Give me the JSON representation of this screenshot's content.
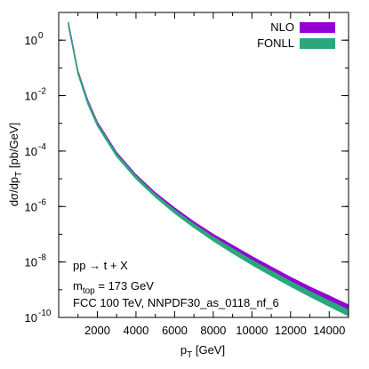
{
  "chart_data": {
    "type": "area",
    "xlabel": "p_T [GeV]",
    "ylabel": "dσ/dp_T [pb/GeV]",
    "xlim": [
      0,
      15000
    ],
    "ylim_log10": [
      -10,
      1
    ],
    "yscale": "log",
    "grid": false,
    "legend_position": "top-right",
    "x_ticks": [
      {
        "value": 2000,
        "label": "2000"
      },
      {
        "value": 4000,
        "label": "4000"
      },
      {
        "value": 6000,
        "label": "6000"
      },
      {
        "value": 8000,
        "label": "8000"
      },
      {
        "value": 10000,
        "label": "10000"
      },
      {
        "value": 12000,
        "label": "12000"
      },
      {
        "value": 14000,
        "label": "14000"
      }
    ],
    "y_ticks": [
      {
        "exp": 0,
        "base": "10",
        "sup": "0"
      },
      {
        "exp": -2,
        "base": "10",
        "sup": "-2"
      },
      {
        "exp": -4,
        "base": "10",
        "sup": "-4"
      },
      {
        "exp": -6,
        "base": "10",
        "sup": "-6"
      },
      {
        "exp": -8,
        "base": "10",
        "sup": "-8"
      },
      {
        "exp": -10,
        "base": "10",
        "sup": "-10"
      }
    ],
    "series": [
      {
        "name": "NLO",
        "color": "#9400d3",
        "x": [
          500,
          1000,
          1500,
          2000,
          3000,
          4000,
          5000,
          6000,
          7000,
          8000,
          9000,
          10000,
          11000,
          12000,
          13000,
          14000,
          15000
        ],
        "y_upper_log10": [
          0.65,
          -1.1,
          -2.15,
          -2.95,
          -4.05,
          -4.85,
          -5.5,
          -6.05,
          -6.55,
          -7.0,
          -7.4,
          -7.8,
          -8.18,
          -8.55,
          -8.9,
          -9.22,
          -9.55
        ],
        "y_lower_log10": [
          0.55,
          -1.2,
          -2.25,
          -3.05,
          -4.15,
          -4.95,
          -5.62,
          -6.2,
          -6.72,
          -7.2,
          -7.63,
          -8.05,
          -8.45,
          -8.83,
          -9.2,
          -9.55,
          -9.9
        ]
      },
      {
        "name": "FONLL",
        "color": "#2aa87a",
        "x": [
          500,
          1000,
          1500,
          2000,
          3000,
          4000,
          5000,
          6000,
          7000,
          8000,
          9000,
          10000,
          11000,
          12000,
          13000,
          14000,
          15000
        ],
        "y_upper_log10": [
          0.6,
          -1.14,
          -2.2,
          -3.0,
          -4.1,
          -4.9,
          -5.56,
          -6.12,
          -6.63,
          -7.1,
          -7.52,
          -7.93,
          -8.32,
          -8.7,
          -9.06,
          -9.4,
          -9.73
        ],
        "y_lower_log10": [
          0.5,
          -1.24,
          -2.3,
          -3.1,
          -4.2,
          -5.0,
          -5.66,
          -6.24,
          -6.76,
          -7.24,
          -7.68,
          -8.1,
          -8.5,
          -8.88,
          -9.25,
          -9.6,
          -9.95
        ]
      }
    ]
  },
  "annotations": {
    "line1": "pp → t + X",
    "line2_main": "m",
    "line2_sub": "top",
    "line2_rest": " = 173 GeV",
    "line3": "FCC 100 TeV, NNPDF30_as_0118_nf_6"
  },
  "labels": {
    "xlabel_main": "p",
    "xlabel_sub": "T",
    "xlabel_rest": " [GeV]",
    "ylabel_main": "dσ/dp",
    "ylabel_sub": "T",
    "ylabel_rest": " [pb/GeV]"
  }
}
